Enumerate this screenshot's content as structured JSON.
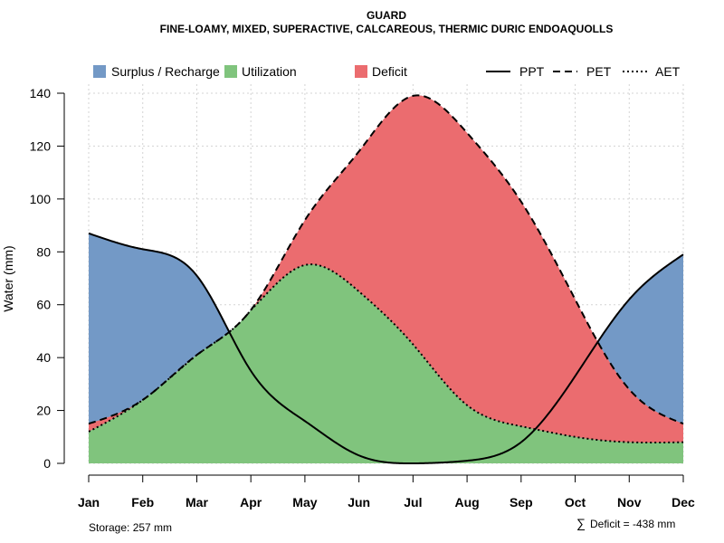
{
  "chart_data": {
    "type": "area",
    "title": "GUARD",
    "subtitle": "FINE-LOAMY, MIXED, SUPERACTIVE, CALCAREOUS, THERMIC DURIC ENDOAQUOLLS",
    "xlabel": "",
    "ylabel": "Water (mm)",
    "ylim": [
      0,
      140
    ],
    "yticks": [
      0,
      20,
      40,
      60,
      80,
      100,
      120,
      140
    ],
    "grid": true,
    "categories": [
      "Jan",
      "Feb",
      "Mar",
      "Apr",
      "May",
      "Jun",
      "Jul",
      "Aug",
      "Sep",
      "Oct",
      "Nov",
      "Dec"
    ],
    "series": [
      {
        "name": "PPT",
        "linestyle": "solid",
        "values": [
          87,
          81,
          71,
          35,
          16,
          3,
          0,
          1,
          8,
          33,
          62,
          79
        ]
      },
      {
        "name": "PET",
        "linestyle": "dashed",
        "values": [
          15,
          24,
          41,
          58,
          92,
          118,
          139,
          125,
          99,
          62,
          28,
          15
        ]
      },
      {
        "name": "AET",
        "linestyle": "dotted",
        "values": [
          12,
          24,
          41,
          58,
          75,
          65,
          45,
          22,
          14,
          10,
          8,
          8
        ]
      }
    ],
    "areas": [
      {
        "name": "Surplus / Recharge",
        "color": "#7399c6"
      },
      {
        "name": "Utilization",
        "color": "#80c47d"
      },
      {
        "name": "Deficit",
        "color": "#eb6c6f"
      }
    ],
    "legend": {
      "placement": "top"
    },
    "annotations": {
      "storage": "Storage: 257 mm",
      "deficit_sum": "Deficit = -438 mm",
      "deficit_symbol": "∑"
    }
  }
}
